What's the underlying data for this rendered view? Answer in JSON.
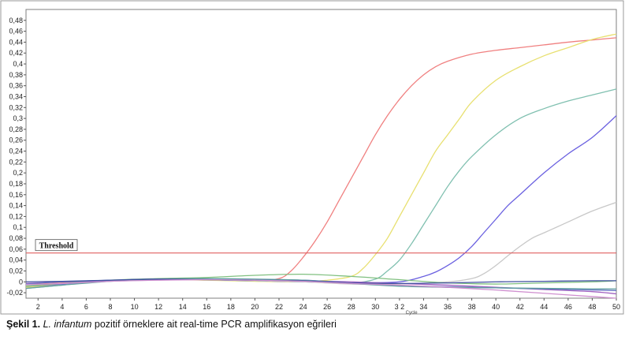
{
  "caption": {
    "label": "Şekil 1.",
    "species": "L. infantum",
    "text": " pozitif örneklere ait real-time PCR amplifikasyon eğrileri"
  },
  "chart_data": {
    "type": "line",
    "xlabel": "Cycle",
    "ylabel": "",
    "xlim": [
      1,
      50
    ],
    "ylim": [
      -0.03,
      0.5
    ],
    "x_ticks": [
      2,
      4,
      6,
      8,
      10,
      12,
      14,
      16,
      18,
      20,
      22,
      24,
      26,
      28,
      30,
      32,
      34,
      36,
      38,
      40,
      42,
      44,
      46,
      48,
      50
    ],
    "x_tick_labels": [
      "2",
      "4",
      "6",
      "8",
      "10",
      "12",
      "14",
      "16",
      "18",
      "20",
      "22",
      "24",
      "26",
      "28",
      "30",
      "3 2",
      "34",
      "36",
      "38",
      "40",
      "42",
      "44",
      "46",
      "48",
      "50"
    ],
    "y_ticks": [
      -0.02,
      0,
      0.02,
      0.04,
      0.06,
      0.08,
      0.1,
      0.12,
      0.14,
      0.16,
      0.18,
      0.2,
      0.22,
      0.24,
      0.26,
      0.28,
      0.3,
      0.32,
      0.34,
      0.36,
      0.38,
      0.4,
      0.42,
      0.44,
      0.46,
      0.48
    ],
    "y_tick_labels": [
      "-0,02",
      "0",
      "0,02",
      "0,04",
      "0,06",
      "0,08",
      "0,1",
      "0,12",
      "0,14",
      "0,16",
      "0,18",
      "0,2",
      "0,22",
      "0,24",
      "0,26",
      "0,28",
      "0,3",
      "0,32",
      "0,34",
      "0,36",
      "0,38",
      "0,4",
      "0,42",
      "0,44",
      "0,46",
      "0,48"
    ],
    "grid": false,
    "threshold": {
      "label": "Threshold",
      "value": 0.053,
      "color": "#e06060"
    },
    "series": [
      {
        "color": "#f08080",
        "x": [
          1,
          4,
          8,
          12,
          16,
          20,
          22,
          23,
          24,
          25,
          26,
          27,
          28,
          29,
          30,
          31,
          32,
          33,
          34,
          35,
          36,
          38,
          40,
          42,
          44,
          46,
          48,
          50
        ],
        "values": [
          -0.005,
          -0.002,
          0.002,
          0.004,
          0.004,
          0.002,
          0.006,
          0.02,
          0.045,
          0.075,
          0.11,
          0.15,
          0.19,
          0.23,
          0.27,
          0.305,
          0.335,
          0.36,
          0.38,
          0.395,
          0.405,
          0.418,
          0.425,
          0.43,
          0.435,
          0.44,
          0.444,
          0.448
        ]
      },
      {
        "color": "#e8e070",
        "x": [
          1,
          4,
          8,
          12,
          16,
          20,
          24,
          26,
          28,
          29,
          30,
          31,
          32,
          33,
          34,
          35,
          36,
          37,
          38,
          40,
          42,
          44,
          46,
          48,
          50
        ],
        "values": [
          -0.01,
          -0.005,
          0.002,
          0.004,
          0.003,
          0.001,
          0.0,
          0.003,
          0.01,
          0.025,
          0.05,
          0.08,
          0.12,
          0.16,
          0.2,
          0.24,
          0.27,
          0.3,
          0.33,
          0.37,
          0.395,
          0.415,
          0.43,
          0.445,
          0.455
        ]
      },
      {
        "color": "#80c0b0",
        "x": [
          1,
          4,
          8,
          12,
          16,
          20,
          24,
          28,
          30,
          31,
          32,
          33,
          34,
          35,
          36,
          37,
          38,
          40,
          42,
          44,
          46,
          48,
          50
        ],
        "values": [
          -0.012,
          -0.006,
          0.002,
          0.005,
          0.004,
          0.002,
          0.0,
          -0.002,
          0.005,
          0.02,
          0.04,
          0.07,
          0.105,
          0.14,
          0.175,
          0.205,
          0.23,
          0.27,
          0.3,
          0.318,
          0.332,
          0.343,
          0.354
        ]
      },
      {
        "color": "#6a60e0",
        "x": [
          1,
          4,
          8,
          12,
          16,
          20,
          24,
          28,
          32,
          34,
          35,
          36,
          37,
          38,
          39,
          40,
          41,
          42,
          44,
          46,
          48,
          50
        ],
        "values": [
          -0.008,
          -0.004,
          0.002,
          0.005,
          0.004,
          0.002,
          0.0,
          -0.002,
          0.0,
          0.01,
          0.018,
          0.03,
          0.045,
          0.065,
          0.09,
          0.115,
          0.14,
          0.16,
          0.2,
          0.235,
          0.265,
          0.305
        ]
      },
      {
        "color": "#c8c8c8",
        "x": [
          1,
          4,
          8,
          12,
          16,
          20,
          24,
          28,
          32,
          36,
          38,
          39,
          40,
          41,
          42,
          43,
          44,
          45,
          46,
          48,
          50
        ],
        "values": [
          -0.006,
          -0.003,
          0.002,
          0.004,
          0.004,
          0.002,
          0.0,
          -0.004,
          -0.004,
          0.0,
          0.006,
          0.015,
          0.03,
          0.048,
          0.065,
          0.08,
          0.09,
          0.1,
          0.11,
          0.13,
          0.146
        ]
      },
      {
        "color": "#80c080",
        "x": [
          1,
          4,
          8,
          12,
          16,
          20,
          24,
          28,
          32,
          36,
          40,
          44,
          48,
          50
        ],
        "values": [
          -0.008,
          -0.003,
          0.003,
          0.006,
          0.008,
          0.012,
          0.014,
          0.01,
          0.004,
          -0.002,
          -0.004,
          -0.002,
          0.0,
          0.002
        ]
      },
      {
        "color": "#a060c0",
        "x": [
          1,
          4,
          8,
          12,
          16,
          20,
          24,
          28,
          32,
          36,
          40,
          44,
          48,
          50
        ],
        "values": [
          -0.003,
          0.0,
          0.002,
          0.004,
          0.004,
          0.003,
          0.002,
          0.0,
          -0.003,
          -0.006,
          -0.01,
          -0.014,
          -0.018,
          -0.022
        ]
      },
      {
        "color": "#6070c0",
        "x": [
          1,
          4,
          8,
          12,
          16,
          20,
          24,
          28,
          32,
          36,
          40,
          44,
          48,
          50
        ],
        "values": [
          -0.004,
          0.0,
          0.003,
          0.005,
          0.005,
          0.004,
          0.003,
          -0.002,
          -0.007,
          -0.009,
          -0.011,
          -0.013,
          -0.015,
          -0.016
        ]
      },
      {
        "color": "#60a0a0",
        "x": [
          1,
          4,
          8,
          12,
          16,
          20,
          24,
          28,
          32,
          36,
          40,
          44,
          48,
          50
        ],
        "values": [
          -0.012,
          -0.006,
          0.001,
          0.005,
          0.006,
          0.005,
          0.003,
          -0.003,
          -0.008,
          -0.01,
          -0.011,
          -0.012,
          -0.013,
          -0.013
        ]
      },
      {
        "color": "#4050a0",
        "x": [
          1,
          4,
          8,
          12,
          16,
          20,
          24,
          28,
          32,
          36,
          40,
          44,
          48,
          50
        ],
        "values": [
          0.0,
          0.001,
          0.003,
          0.005,
          0.004,
          0.003,
          0.002,
          -0.002,
          -0.003,
          -0.002,
          0.0,
          0.001,
          0.002,
          0.002
        ]
      },
      {
        "color": "#d090d0",
        "x": [
          1,
          4,
          8,
          12,
          16,
          20,
          24,
          28,
          32,
          36,
          40,
          44,
          48,
          50
        ],
        "values": [
          -0.005,
          -0.003,
          0.001,
          0.003,
          0.004,
          0.003,
          0.001,
          -0.003,
          -0.006,
          -0.01,
          -0.015,
          -0.021,
          -0.027,
          -0.03
        ]
      }
    ]
  }
}
